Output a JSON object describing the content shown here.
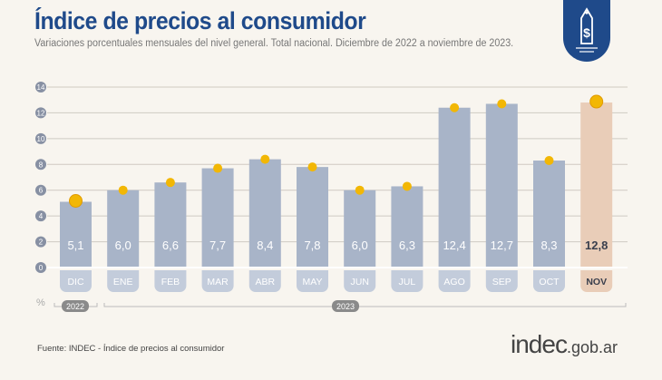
{
  "header": {
    "title": "Índice de precios al consumidor",
    "subtitle": "Variaciones porcentuales mensuales del nivel general. Total nacional. Diciembre de 2022 a noviembre de 2023."
  },
  "footer": {
    "source": "Fuente: INDEC - Índice de precios al consumidor",
    "logo_main": "indec",
    "logo_domain": ".gob.ar"
  },
  "chart_data": {
    "type": "bar",
    "title": "",
    "xlabel": "",
    "ylabel": "%",
    "categories": [
      "DIC",
      "ENE",
      "FEB",
      "MAR",
      "ABR",
      "MAY",
      "JUN",
      "JUL",
      "AGO",
      "SEP",
      "OCT",
      "NOV"
    ],
    "values": [
      5.1,
      6.0,
      6.6,
      7.7,
      8.4,
      7.8,
      6.0,
      6.3,
      12.4,
      12.7,
      8.3,
      12.8
    ],
    "value_labels": [
      "5,1",
      "6,0",
      "6,6",
      "7,7",
      "8,4",
      "7,8",
      "6,0",
      "6,3",
      "12,4",
      "12,7",
      "8,3",
      "12,8"
    ],
    "yticks": [
      "0",
      "2",
      "4",
      "6",
      "8",
      "10",
      "12",
      "14"
    ],
    "ylim": [
      0,
      14
    ],
    "year_groups": [
      {
        "label": "2022",
        "span": [
          "DIC",
          "DIC"
        ]
      },
      {
        "label": "2023",
        "span": [
          "ENE",
          "NOV"
        ]
      }
    ],
    "grid": true,
    "colors": {
      "bar": "#a8b4c8",
      "highlight_bar": "#e9cdb8",
      "dot": "#f2b705",
      "label_bg": "#c3ccdb",
      "title": "#1f4a8a"
    }
  }
}
